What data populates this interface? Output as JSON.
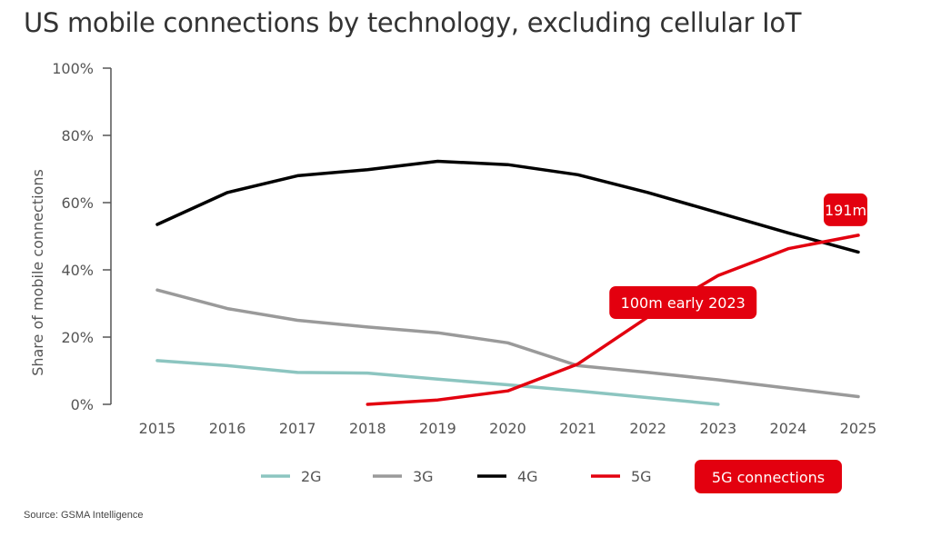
{
  "title": "US mobile connections by technology, excluding cellular IoT",
  "source": "Source: GSMA Intelligence",
  "chart_data": {
    "type": "line",
    "title": "US mobile connections by technology, excluding cellular IoT",
    "ylabel": "Share of mobile connections",
    "xlabel": "",
    "x": [
      2015,
      2016,
      2017,
      2018,
      2019,
      2020,
      2021,
      2022,
      2023,
      2024,
      2025
    ],
    "ylim": [
      0,
      100
    ],
    "yticks": [
      0,
      20,
      40,
      60,
      80,
      100
    ],
    "ytick_labels": [
      "0%",
      "20%",
      "40%",
      "60%",
      "80%",
      "100%"
    ],
    "grid": false,
    "legend_position": "bottom",
    "series": [
      {
        "name": "2G",
        "color": "#8cc5c0",
        "x": [
          2015,
          2016,
          2017,
          2018,
          2019,
          2020,
          2021,
          2022,
          2023
        ],
        "values": [
          13,
          11.5,
          9.5,
          9.3,
          7.5,
          5.8,
          4,
          2,
          0
        ]
      },
      {
        "name": "3G",
        "color": "#9a9a9a",
        "x": [
          2015,
          2016,
          2017,
          2018,
          2019,
          2020,
          2021,
          2022,
          2023,
          2024,
          2025
        ],
        "values": [
          34,
          28.5,
          25,
          23,
          21.3,
          18.3,
          11.5,
          9.5,
          7.3,
          4.8,
          2.3
        ]
      },
      {
        "name": "4G",
        "color": "#000000",
        "x": [
          2015,
          2016,
          2017,
          2018,
          2019,
          2020,
          2021,
          2022,
          2023,
          2024,
          2025
        ],
        "values": [
          53.5,
          63,
          68,
          69.8,
          72.3,
          71.3,
          68.3,
          63,
          57,
          51,
          45.3
        ]
      },
      {
        "name": "5G",
        "color": "#e3000f",
        "x": [
          2018,
          2019,
          2020,
          2021,
          2022,
          2023,
          2024,
          2025
        ],
        "values": [
          0,
          1.3,
          4,
          12,
          26,
          38.3,
          46.3,
          50.3
        ]
      }
    ],
    "callouts": [
      {
        "label": "191m",
        "x": 2025,
        "y": 50.3
      },
      {
        "label": "100m early 2023",
        "x": 2022.5,
        "y": 30
      }
    ],
    "legend_extra": "5G connections"
  }
}
